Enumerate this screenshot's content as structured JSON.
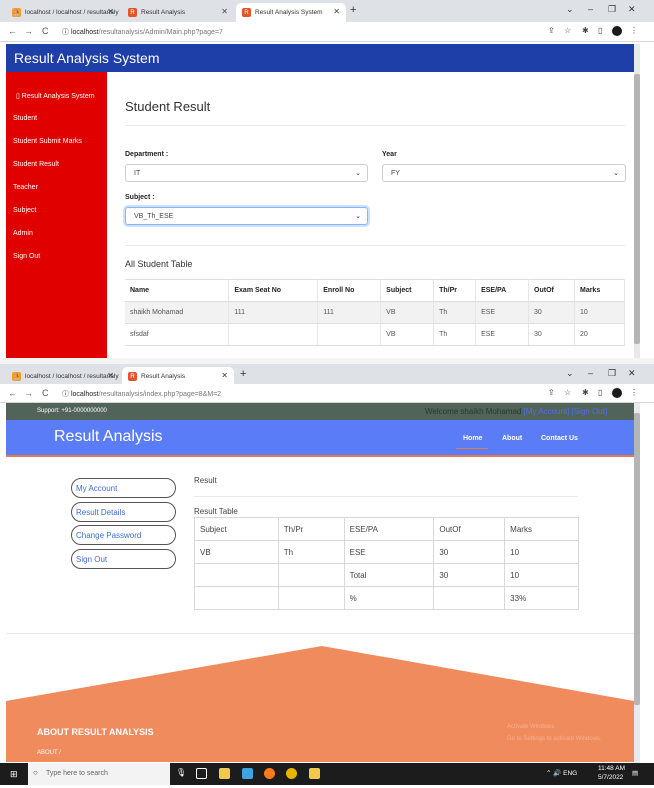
{
  "top_window": {
    "tabs": [
      {
        "label": "localhost / localhost / resultanaly",
        "active": false
      },
      {
        "label": "Result Analysis",
        "active": false
      },
      {
        "label": "Result Analysis System",
        "active": true
      }
    ],
    "url_host": "localhost",
    "url_path": "/resultanalysis/Admin/Main.php?page=7",
    "app_title": "Result Analysis System",
    "sidebar": [
      {
        "label": "Result Analysis System"
      },
      {
        "label": "Student"
      },
      {
        "label": "Student Submit Marks"
      },
      {
        "label": "Student Result"
      },
      {
        "label": "Teacher"
      },
      {
        "label": "Subject"
      },
      {
        "label": "Admin"
      },
      {
        "label": "Sign Out"
      }
    ],
    "page_heading": "Student Result",
    "department_label": "Department :",
    "department_value": "IT",
    "year_label": "Year",
    "year_value": "FY",
    "subject_label": "Subject :",
    "subject_value": "VB_Th_ESE",
    "table_title": "All Student Table",
    "table_headers": [
      "Name",
      "Exam Seat No",
      "Enroll No",
      "Subject",
      "Th/Pr",
      "ESE/PA",
      "OutOf",
      "Marks"
    ],
    "table_rows": [
      [
        "shaikh Mohamad",
        "111",
        "111",
        "VB",
        "Th",
        "ESE",
        "30",
        "10"
      ],
      [
        "sfsdaf",
        "",
        "",
        "VB",
        "Th",
        "ESE",
        "30",
        "20"
      ]
    ]
  },
  "bottom_window": {
    "tabs": [
      {
        "label": "localhost / localhost / resultanaly",
        "active": false
      },
      {
        "label": "Result Analysis",
        "active": true
      }
    ],
    "url_host": "localhost",
    "url_path": "/resultanalysis/index.php?page=8&M=2",
    "support": "Support: +91-0000000000",
    "welcome": "Welcome shaikh Mohamad",
    "my_account_link": "[My Account]",
    "sign_out_link": "[Sign Out]",
    "brand": "Result Analysis",
    "nav": [
      "Home",
      "About",
      "Contact Us"
    ],
    "left_menu": [
      "My Account",
      "Result Details",
      "Change Password",
      "Sign Out"
    ],
    "result_heading": "Result",
    "result_table_title": "Result Table",
    "result_table": [
      [
        "Subject",
        "Th/Pr",
        "ESE/PA",
        "OutOf",
        "Marks"
      ],
      [
        "VB",
        "Th",
        "ESE",
        "30",
        "10"
      ],
      [
        "",
        "",
        "Total",
        "30",
        "10"
      ],
      [
        "",
        "",
        "%",
        "",
        "33%"
      ]
    ],
    "footer_title": "ABOUT RESULT ANALYSIS",
    "footer_sub": "ABOUT /",
    "activate_windows_1": "Activate Windows",
    "activate_windows_2": "Go to Settings to activate Windows."
  },
  "taskbar": {
    "search_placeholder": "Type here to search",
    "time": "11:48 AM",
    "date": "5/7/2022",
    "tray_lang": "ENG"
  },
  "colors": {
    "header_blue": "#1f3fa8",
    "sidebar_red": "#e00000",
    "nav_blue": "#5b7cf7",
    "footer_orange": "#f08b5e",
    "support_green": "#52645a"
  }
}
